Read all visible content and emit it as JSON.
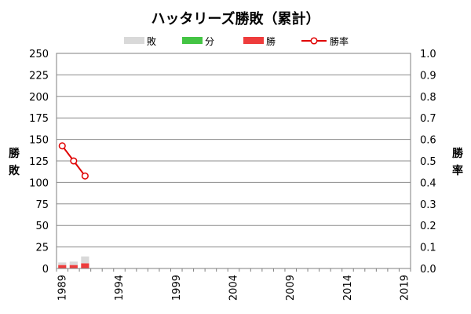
{
  "chart_data": {
    "type": "bar",
    "title": "ハッタリーズ勝敗（累計）",
    "ylabel_left": "勝敗",
    "ylabel_right": "勝率",
    "ylim_left": [
      0,
      250
    ],
    "ylim_right": [
      0,
      1.0
    ],
    "x_range": [
      1989,
      2019
    ],
    "x_tick_labels": [
      "1989",
      "1994",
      "1999",
      "2004",
      "2009",
      "2014",
      "2019"
    ],
    "y_left_ticks": [
      "0",
      "25",
      "50",
      "75",
      "100",
      "125",
      "150",
      "175",
      "200",
      "225",
      "250"
    ],
    "y_right_ticks": [
      "0.0",
      "0.1",
      "0.2",
      "0.3",
      "0.4",
      "0.5",
      "0.6",
      "0.7",
      "0.8",
      "0.9",
      "1.0"
    ],
    "legend": [
      "敗",
      "分",
      "勝",
      "勝率"
    ],
    "stacked": true,
    "grid": true,
    "legend_position": "top",
    "x": [
      1989,
      1990,
      1991
    ],
    "series": [
      {
        "name": "勝",
        "type": "bar",
        "color": "#ee3c3c",
        "values": [
          4,
          4,
          6
        ]
      },
      {
        "name": "分",
        "type": "bar",
        "color": "#44c444",
        "values": [
          0,
          0,
          0
        ]
      },
      {
        "name": "敗",
        "type": "bar",
        "color": "#d9d9d9",
        "values": [
          3,
          4,
          8
        ]
      },
      {
        "name": "勝率",
        "type": "line",
        "axis": "right",
        "color": "#e00000",
        "values": [
          0.57,
          0.5,
          0.43
        ]
      }
    ]
  }
}
